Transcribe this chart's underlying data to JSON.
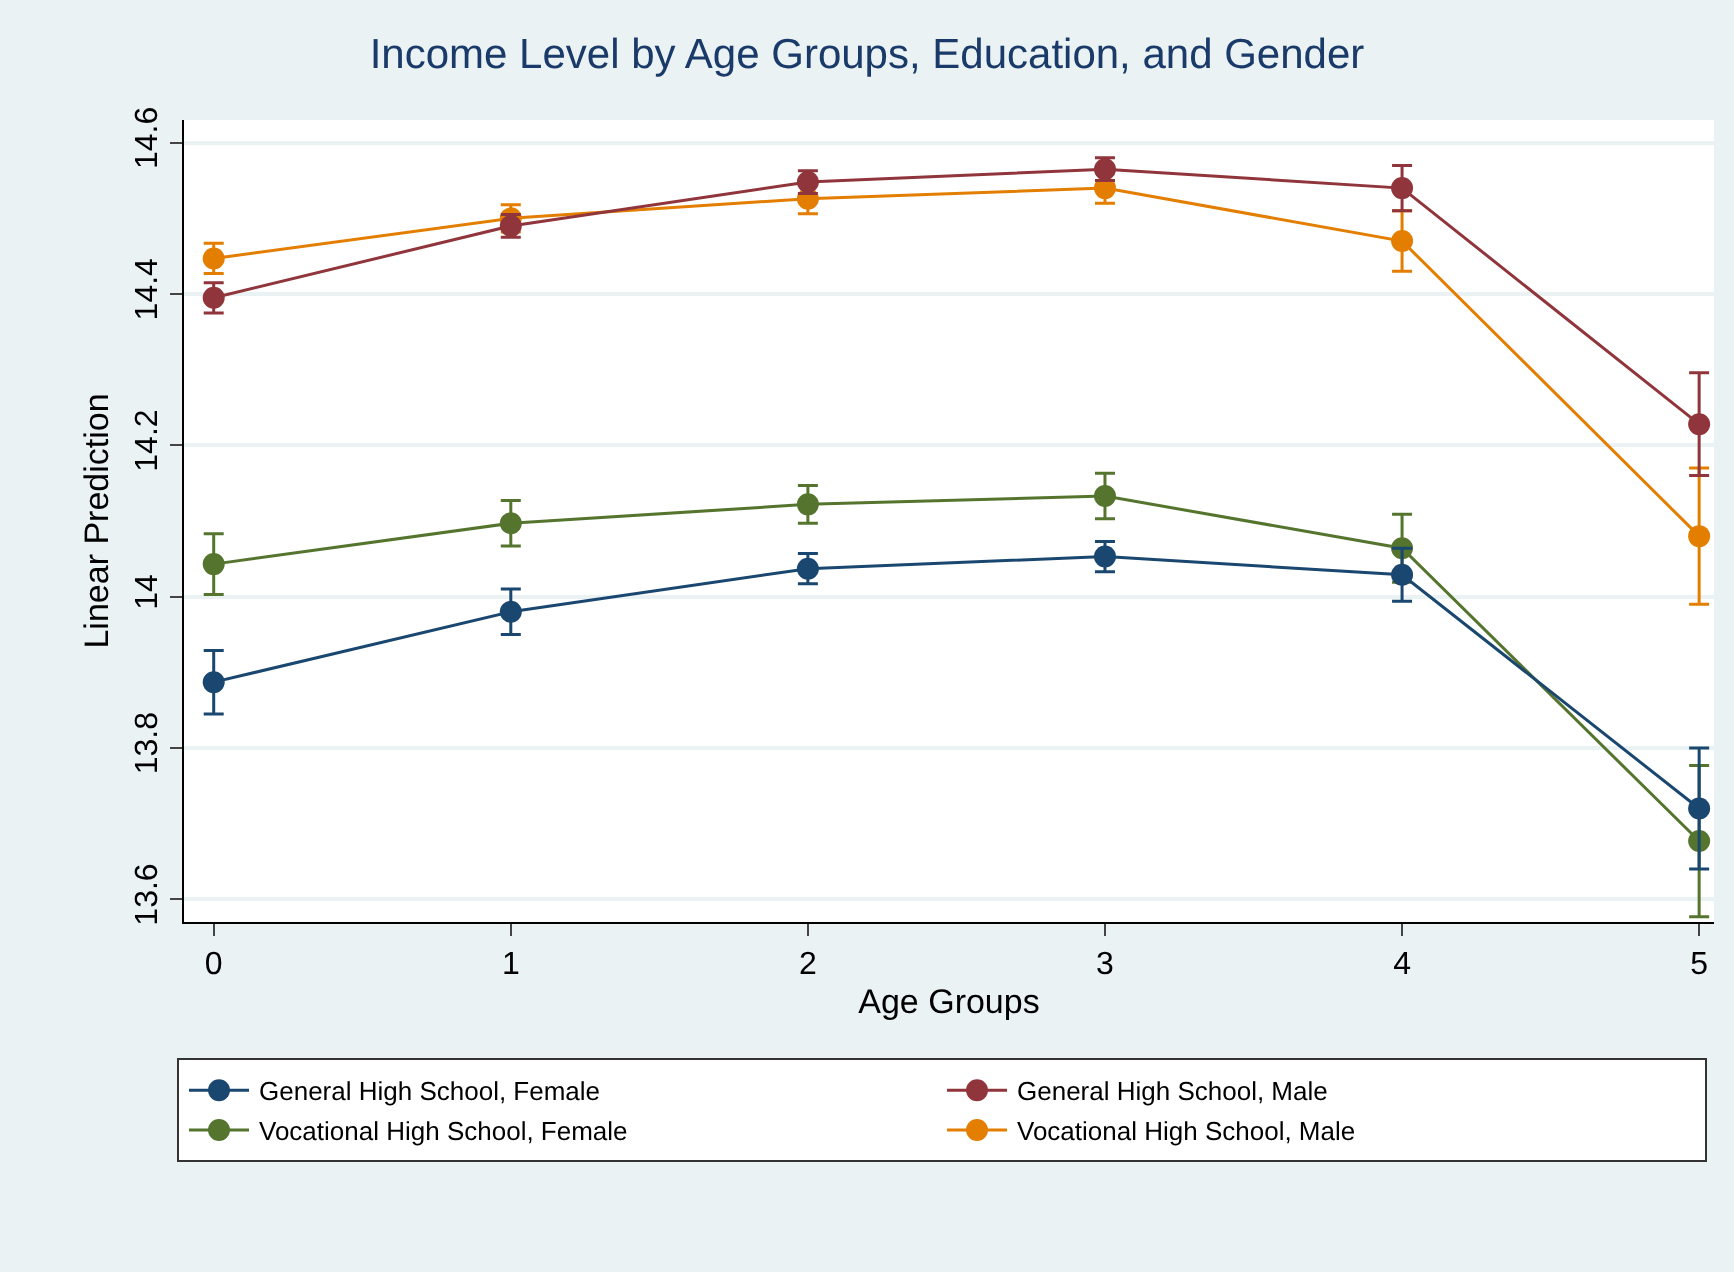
{
  "chart_data": {
    "type": "line",
    "title": "Income Level by Age Groups, Education, and Gender",
    "xlabel": "Age Groups",
    "ylabel": "Linear Prediction",
    "x": [
      0,
      1,
      2,
      3,
      4,
      5
    ],
    "xlim": [
      -0.1,
      5.05
    ],
    "xticks": [
      0,
      1,
      2,
      3,
      4,
      5
    ],
    "ylim": [
      13.57,
      14.63
    ],
    "yticks": [
      13.6,
      13.8,
      14,
      14.2,
      14.4,
      14.6
    ],
    "grid": "y",
    "legend": "bottom",
    "marker": "circle",
    "line_style": "solid",
    "series": [
      {
        "name": "General High School, Female",
        "color": "#1a476f",
        "values": [
          13.887,
          13.98,
          14.037,
          14.053,
          14.029,
          13.72
        ],
        "errors": [
          0.042,
          0.03,
          0.02,
          0.02,
          0.035,
          0.08
        ]
      },
      {
        "name": "General High School, Male",
        "color": "#90353b",
        "values": [
          14.395,
          14.49,
          14.548,
          14.565,
          14.54,
          14.228
        ],
        "errors": [
          0.02,
          0.015,
          0.015,
          0.015,
          0.03,
          0.068
        ]
      },
      {
        "name": "Vocational High School, Female",
        "color": "#55752f",
        "values": [
          14.043,
          14.097,
          14.122,
          14.133,
          14.064,
          13.677
        ],
        "errors": [
          0.04,
          0.03,
          0.025,
          0.03,
          0.045,
          0.1
        ]
      },
      {
        "name": "Vocational High School, Male",
        "color": "#e37e00",
        "values": [
          14.447,
          14.5,
          14.526,
          14.54,
          14.47,
          14.08
        ],
        "errors": [
          0.02,
          0.018,
          0.02,
          0.02,
          0.04,
          0.09
        ]
      }
    ]
  }
}
